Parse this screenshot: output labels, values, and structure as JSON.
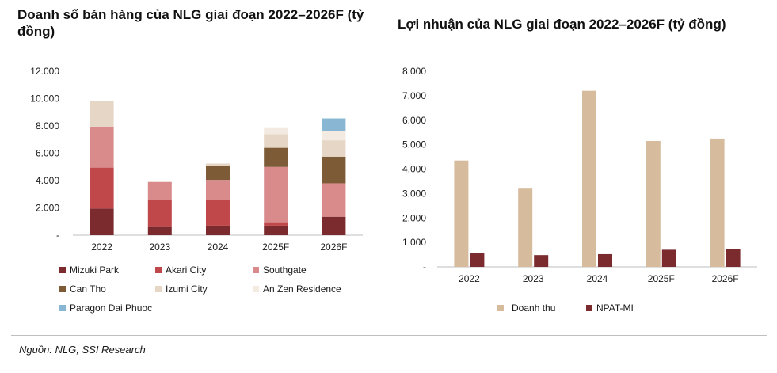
{
  "titles": {
    "left": "Doanh số bán hàng của NLG giai đoạn 2022–2026F (tỷ đồng)",
    "right": "Lợi nhuận của NLG giai đoạn 2022–2026F (tỷ đồng)"
  },
  "source": "Nguồn: NLG, SSI Research",
  "chart_data": [
    {
      "type": "bar",
      "stacked": true,
      "title": "Doanh số bán hàng của NLG giai đoạn 2022–2026F (tỷ đồng)",
      "categories": [
        "2022",
        "2023",
        "2024",
        "2025F",
        "2026F"
      ],
      "ylim": [
        0,
        12000
      ],
      "yticks": [
        0,
        2000,
        4000,
        6000,
        8000,
        10000,
        12000
      ],
      "ytick_labels": [
        "-",
        "2.000",
        "4.000",
        "6.000",
        "8.000",
        "10.000",
        "12.000"
      ],
      "legend_position": "bottom",
      "series": [
        {
          "name": "Mizuki Park",
          "color": "#7b2a2e",
          "values": [
            1950,
            600,
            700,
            700,
            1350
          ]
        },
        {
          "name": "Akari City",
          "color": "#c0474a",
          "values": [
            3000,
            1950,
            1900,
            250,
            0
          ]
        },
        {
          "name": "Southgate",
          "color": "#d98b8c",
          "values": [
            3000,
            1350,
            1450,
            4050,
            2450
          ]
        },
        {
          "name": "Can Tho",
          "color": "#7d5b36",
          "values": [
            0,
            0,
            1050,
            1400,
            1950
          ]
        },
        {
          "name": "Izumi City",
          "color": "#e6d6c6",
          "values": [
            1850,
            0,
            150,
            1000,
            1200
          ]
        },
        {
          "name": "An Zen Residence",
          "color": "#f3ebe1",
          "values": [
            0,
            0,
            0,
            500,
            650
          ]
        },
        {
          "name": "Paragon Dai Phuoc",
          "color": "#89b7d3",
          "values": [
            0,
            0,
            0,
            0,
            950
          ]
        }
      ]
    },
    {
      "type": "bar",
      "stacked": false,
      "title": "Lợi nhuận của NLG giai đoạn 2022–2026F (tỷ đồng)",
      "categories": [
        "2022",
        "2023",
        "2024",
        "2025F",
        "2026F"
      ],
      "ylim": [
        0,
        8000
      ],
      "yticks": [
        0,
        1000,
        2000,
        3000,
        4000,
        5000,
        6000,
        7000,
        8000
      ],
      "ytick_labels": [
        "-",
        "1.000",
        "2.000",
        "3.000",
        "4.000",
        "5.000",
        "6.000",
        "7.000",
        "8.000"
      ],
      "legend_position": "bottom",
      "series": [
        {
          "name": "Doanh thu",
          "color": "#d6bc9c",
          "values": [
            4350,
            3200,
            7200,
            5150,
            5250
          ]
        },
        {
          "name": "NPAT-MI",
          "color": "#7b2a2e",
          "values": [
            550,
            480,
            520,
            700,
            720
          ]
        }
      ]
    }
  ]
}
